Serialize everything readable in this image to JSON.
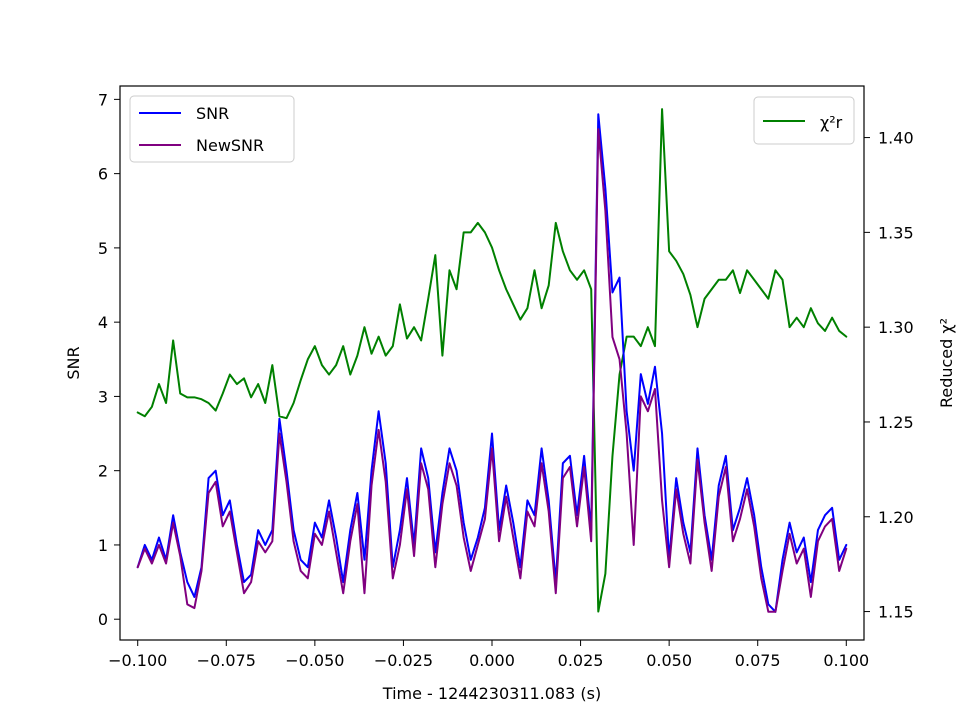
{
  "chart_data": {
    "type": "line",
    "xlabel": "Time - 1244230311.083 (s)",
    "ylabel_left": "SNR",
    "ylabel_right": "Reduced χ²",
    "xlim": [
      -0.105,
      0.105
    ],
    "ylim_left": [
      -0.28,
      7.18
    ],
    "ylim_right": [
      1.135,
      1.4272
    ],
    "x_ticks": [
      -0.1,
      -0.075,
      -0.05,
      -0.025,
      0.0,
      0.025,
      0.05,
      0.075,
      0.1
    ],
    "x_tick_labels": [
      "−0.100",
      "−0.075",
      "−0.050",
      "−0.025",
      "0.000",
      "0.025",
      "0.050",
      "0.075",
      "0.100"
    ],
    "y_left_ticks": [
      0,
      1,
      2,
      3,
      4,
      5,
      6,
      7
    ],
    "y_left_tick_labels": [
      "0",
      "1",
      "2",
      "3",
      "4",
      "5",
      "6",
      "7"
    ],
    "y_right_ticks": [
      1.15,
      1.2,
      1.25,
      1.3,
      1.35,
      1.4
    ],
    "y_right_tick_labels": [
      "1.15",
      "1.20",
      "1.25",
      "1.30",
      "1.35",
      "1.40"
    ],
    "legend_left": {
      "placement": "upper-left",
      "entries": [
        "SNR",
        "NewSNR"
      ]
    },
    "legend_right": {
      "placement": "upper-right",
      "entries": [
        "χ²r"
      ]
    },
    "grid": false,
    "series": [
      {
        "name": "SNR",
        "axis": "left",
        "color": "#0000ff",
        "x": [
          -0.1,
          -0.098,
          -0.096,
          -0.094,
          -0.092,
          -0.09,
          -0.088,
          -0.086,
          -0.084,
          -0.082,
          -0.08,
          -0.078,
          -0.076,
          -0.074,
          -0.072,
          -0.07,
          -0.068,
          -0.066,
          -0.064,
          -0.062,
          -0.06,
          -0.058,
          -0.056,
          -0.054,
          -0.052,
          -0.05,
          -0.048,
          -0.046,
          -0.044,
          -0.042,
          -0.04,
          -0.038,
          -0.036,
          -0.034,
          -0.032,
          -0.03,
          -0.028,
          -0.026,
          -0.024,
          -0.022,
          -0.02,
          -0.018,
          -0.016,
          -0.014,
          -0.012,
          -0.01,
          -0.008,
          -0.006,
          -0.004,
          -0.002,
          0.0,
          0.002,
          0.004,
          0.006,
          0.008,
          0.01,
          0.012,
          0.014,
          0.016,
          0.018,
          0.02,
          0.022,
          0.024,
          0.026,
          0.028,
          0.03,
          0.032,
          0.034,
          0.036,
          0.038,
          0.04,
          0.042,
          0.044,
          0.046,
          0.048,
          0.05,
          0.052,
          0.054,
          0.056,
          0.058,
          0.06,
          0.062,
          0.064,
          0.066,
          0.068,
          0.07,
          0.072,
          0.074,
          0.076,
          0.078,
          0.08,
          0.082,
          0.084,
          0.086,
          0.088,
          0.09,
          0.092,
          0.094,
          0.096,
          0.098,
          0.1
        ],
        "y": [
          0.7,
          1.0,
          0.8,
          1.1,
          0.8,
          1.4,
          0.9,
          0.5,
          0.3,
          0.7,
          1.9,
          2.0,
          1.4,
          1.6,
          1.0,
          0.5,
          0.6,
          1.2,
          1.0,
          1.2,
          2.7,
          2.0,
          1.2,
          0.8,
          0.7,
          1.3,
          1.1,
          1.6,
          1.1,
          0.5,
          1.2,
          1.7,
          0.8,
          2.0,
          2.8,
          2.1,
          0.7,
          1.2,
          1.9,
          1.0,
          2.3,
          1.9,
          0.9,
          1.7,
          2.3,
          2.0,
          1.3,
          0.8,
          1.1,
          1.5,
          2.5,
          1.2,
          1.8,
          1.3,
          0.7,
          1.6,
          1.4,
          2.3,
          1.6,
          0.5,
          2.1,
          2.2,
          1.4,
          2.2,
          1.2,
          6.8,
          5.8,
          4.4,
          4.6,
          2.8,
          2.0,
          3.3,
          2.9,
          3.4,
          2.5,
          0.8,
          1.9,
          1.3,
          0.9,
          2.3,
          1.4,
          0.8,
          1.8,
          2.2,
          1.2,
          1.5,
          1.9,
          1.4,
          0.7,
          0.2,
          0.1,
          0.8,
          1.3,
          0.9,
          1.1,
          0.5,
          1.2,
          1.4,
          1.5,
          0.8,
          1.0
        ]
      },
      {
        "name": "NewSNR",
        "axis": "left",
        "color": "#800080",
        "x": [
          -0.1,
          -0.098,
          -0.096,
          -0.094,
          -0.092,
          -0.09,
          -0.088,
          -0.086,
          -0.084,
          -0.082,
          -0.08,
          -0.078,
          -0.076,
          -0.074,
          -0.072,
          -0.07,
          -0.068,
          -0.066,
          -0.064,
          -0.062,
          -0.06,
          -0.058,
          -0.056,
          -0.054,
          -0.052,
          -0.05,
          -0.048,
          -0.046,
          -0.044,
          -0.042,
          -0.04,
          -0.038,
          -0.036,
          -0.034,
          -0.032,
          -0.03,
          -0.028,
          -0.026,
          -0.024,
          -0.022,
          -0.02,
          -0.018,
          -0.016,
          -0.014,
          -0.012,
          -0.01,
          -0.008,
          -0.006,
          -0.004,
          -0.002,
          0.0,
          0.002,
          0.004,
          0.006,
          0.008,
          0.01,
          0.012,
          0.014,
          0.016,
          0.018,
          0.02,
          0.022,
          0.024,
          0.026,
          0.028,
          0.03,
          0.032,
          0.034,
          0.036,
          0.038,
          0.04,
          0.042,
          0.044,
          0.046,
          0.048,
          0.05,
          0.052,
          0.054,
          0.056,
          0.058,
          0.06,
          0.062,
          0.064,
          0.066,
          0.068,
          0.07,
          0.072,
          0.074,
          0.076,
          0.078,
          0.08,
          0.082,
          0.084,
          0.086,
          0.088,
          0.09,
          0.092,
          0.094,
          0.096,
          0.098,
          0.1
        ],
        "y": [
          0.7,
          0.95,
          0.75,
          1.0,
          0.75,
          1.3,
          0.85,
          0.2,
          0.15,
          0.65,
          1.7,
          1.85,
          1.25,
          1.45,
          0.9,
          0.35,
          0.5,
          1.05,
          0.9,
          1.05,
          2.5,
          1.85,
          1.05,
          0.65,
          0.55,
          1.15,
          1.0,
          1.45,
          0.9,
          0.35,
          1.05,
          1.55,
          0.35,
          1.8,
          2.55,
          1.85,
          0.55,
          1.0,
          1.75,
          0.85,
          2.1,
          1.75,
          0.7,
          1.55,
          2.1,
          1.8,
          1.1,
          0.65,
          1.0,
          1.35,
          2.3,
          1.05,
          1.65,
          1.1,
          0.55,
          1.45,
          1.25,
          2.1,
          1.45,
          0.35,
          1.9,
          2.05,
          1.25,
          2.05,
          1.05,
          6.6,
          5.5,
          3.8,
          3.5,
          2.5,
          1.0,
          3.0,
          2.8,
          3.1,
          1.6,
          0.7,
          1.75,
          1.15,
          0.75,
          2.15,
          1.3,
          0.65,
          1.65,
          2.05,
          1.05,
          1.35,
          1.75,
          1.25,
          0.55,
          0.1,
          0.1,
          0.65,
          1.15,
          0.75,
          0.95,
          0.3,
          1.05,
          1.25,
          1.35,
          0.65,
          0.95
        ]
      },
      {
        "name": "χ²r",
        "axis": "right",
        "color": "#008000",
        "x": [
          -0.1,
          -0.098,
          -0.096,
          -0.094,
          -0.092,
          -0.09,
          -0.088,
          -0.086,
          -0.084,
          -0.082,
          -0.08,
          -0.078,
          -0.076,
          -0.074,
          -0.072,
          -0.07,
          -0.068,
          -0.066,
          -0.064,
          -0.062,
          -0.06,
          -0.058,
          -0.056,
          -0.054,
          -0.052,
          -0.05,
          -0.048,
          -0.046,
          -0.044,
          -0.042,
          -0.04,
          -0.038,
          -0.036,
          -0.034,
          -0.032,
          -0.03,
          -0.028,
          -0.026,
          -0.024,
          -0.022,
          -0.02,
          -0.018,
          -0.016,
          -0.014,
          -0.012,
          -0.01,
          -0.008,
          -0.006,
          -0.004,
          -0.002,
          0.0,
          0.002,
          0.004,
          0.006,
          0.008,
          0.01,
          0.012,
          0.014,
          0.016,
          0.018,
          0.02,
          0.022,
          0.024,
          0.026,
          0.028,
          0.03,
          0.032,
          0.034,
          0.036,
          0.038,
          0.04,
          0.042,
          0.044,
          0.046,
          0.048,
          0.05,
          0.052,
          0.054,
          0.056,
          0.058,
          0.06,
          0.062,
          0.064,
          0.066,
          0.068,
          0.07,
          0.072,
          0.074,
          0.076,
          0.078,
          0.08,
          0.082,
          0.084,
          0.086,
          0.088,
          0.09,
          0.092,
          0.094,
          0.096,
          0.098,
          0.1
        ],
        "y": [
          1.255,
          1.253,
          1.258,
          1.27,
          1.26,
          1.293,
          1.265,
          1.263,
          1.263,
          1.262,
          1.26,
          1.256,
          1.265,
          1.275,
          1.27,
          1.273,
          1.263,
          1.27,
          1.26,
          1.28,
          1.253,
          1.252,
          1.26,
          1.272,
          1.283,
          1.29,
          1.28,
          1.275,
          1.28,
          1.29,
          1.275,
          1.285,
          1.3,
          1.286,
          1.295,
          1.285,
          1.29,
          1.312,
          1.294,
          1.3,
          1.293,
          1.315,
          1.338,
          1.285,
          1.33,
          1.32,
          1.35,
          1.35,
          1.355,
          1.35,
          1.342,
          1.33,
          1.32,
          1.312,
          1.304,
          1.31,
          1.33,
          1.31,
          1.322,
          1.355,
          1.34,
          1.33,
          1.325,
          1.33,
          1.32,
          1.15,
          1.17,
          1.232,
          1.275,
          1.295,
          1.295,
          1.29,
          1.3,
          1.29,
          1.415,
          1.34,
          1.335,
          1.328,
          1.317,
          1.3,
          1.315,
          1.32,
          1.325,
          1.325,
          1.33,
          1.318,
          1.33,
          1.325,
          1.32,
          1.315,
          1.33,
          1.325,
          1.3,
          1.305,
          1.3,
          1.31,
          1.302,
          1.298,
          1.305,
          1.298,
          1.295
        ]
      }
    ]
  }
}
